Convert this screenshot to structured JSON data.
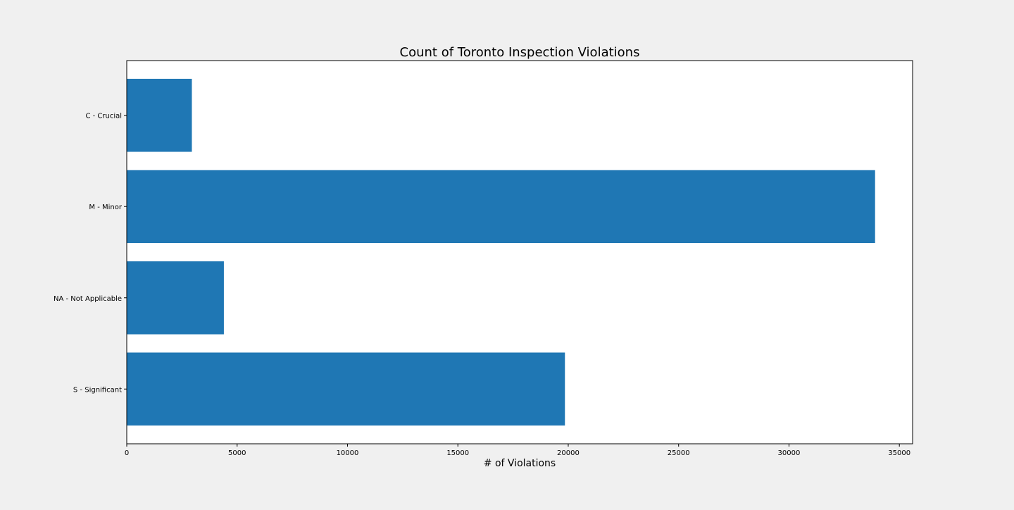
{
  "chart_data": {
    "type": "bar",
    "orientation": "horizontal",
    "title": "Count of Toronto Inspection Violations",
    "xlabel": "# of Violations",
    "ylabel": "",
    "categories": [
      "C - Crucial",
      "M - Minor",
      "NA - Not Applicable",
      "S - Significant"
    ],
    "values": [
      2950,
      33900,
      4400,
      19850
    ],
    "xlim": [
      0,
      35600
    ],
    "xticks": [
      0,
      5000,
      10000,
      15000,
      20000,
      25000,
      30000,
      35000
    ],
    "xtick_labels": [
      "0",
      "5000",
      "10000",
      "15000",
      "20000",
      "25000",
      "30000",
      "35000"
    ],
    "grid": false,
    "legend": "none",
    "colors": {
      "bar": "#1f77b4",
      "background": "#f0f0f0",
      "plot_background": "#ffffff",
      "axis": "#000000"
    }
  }
}
